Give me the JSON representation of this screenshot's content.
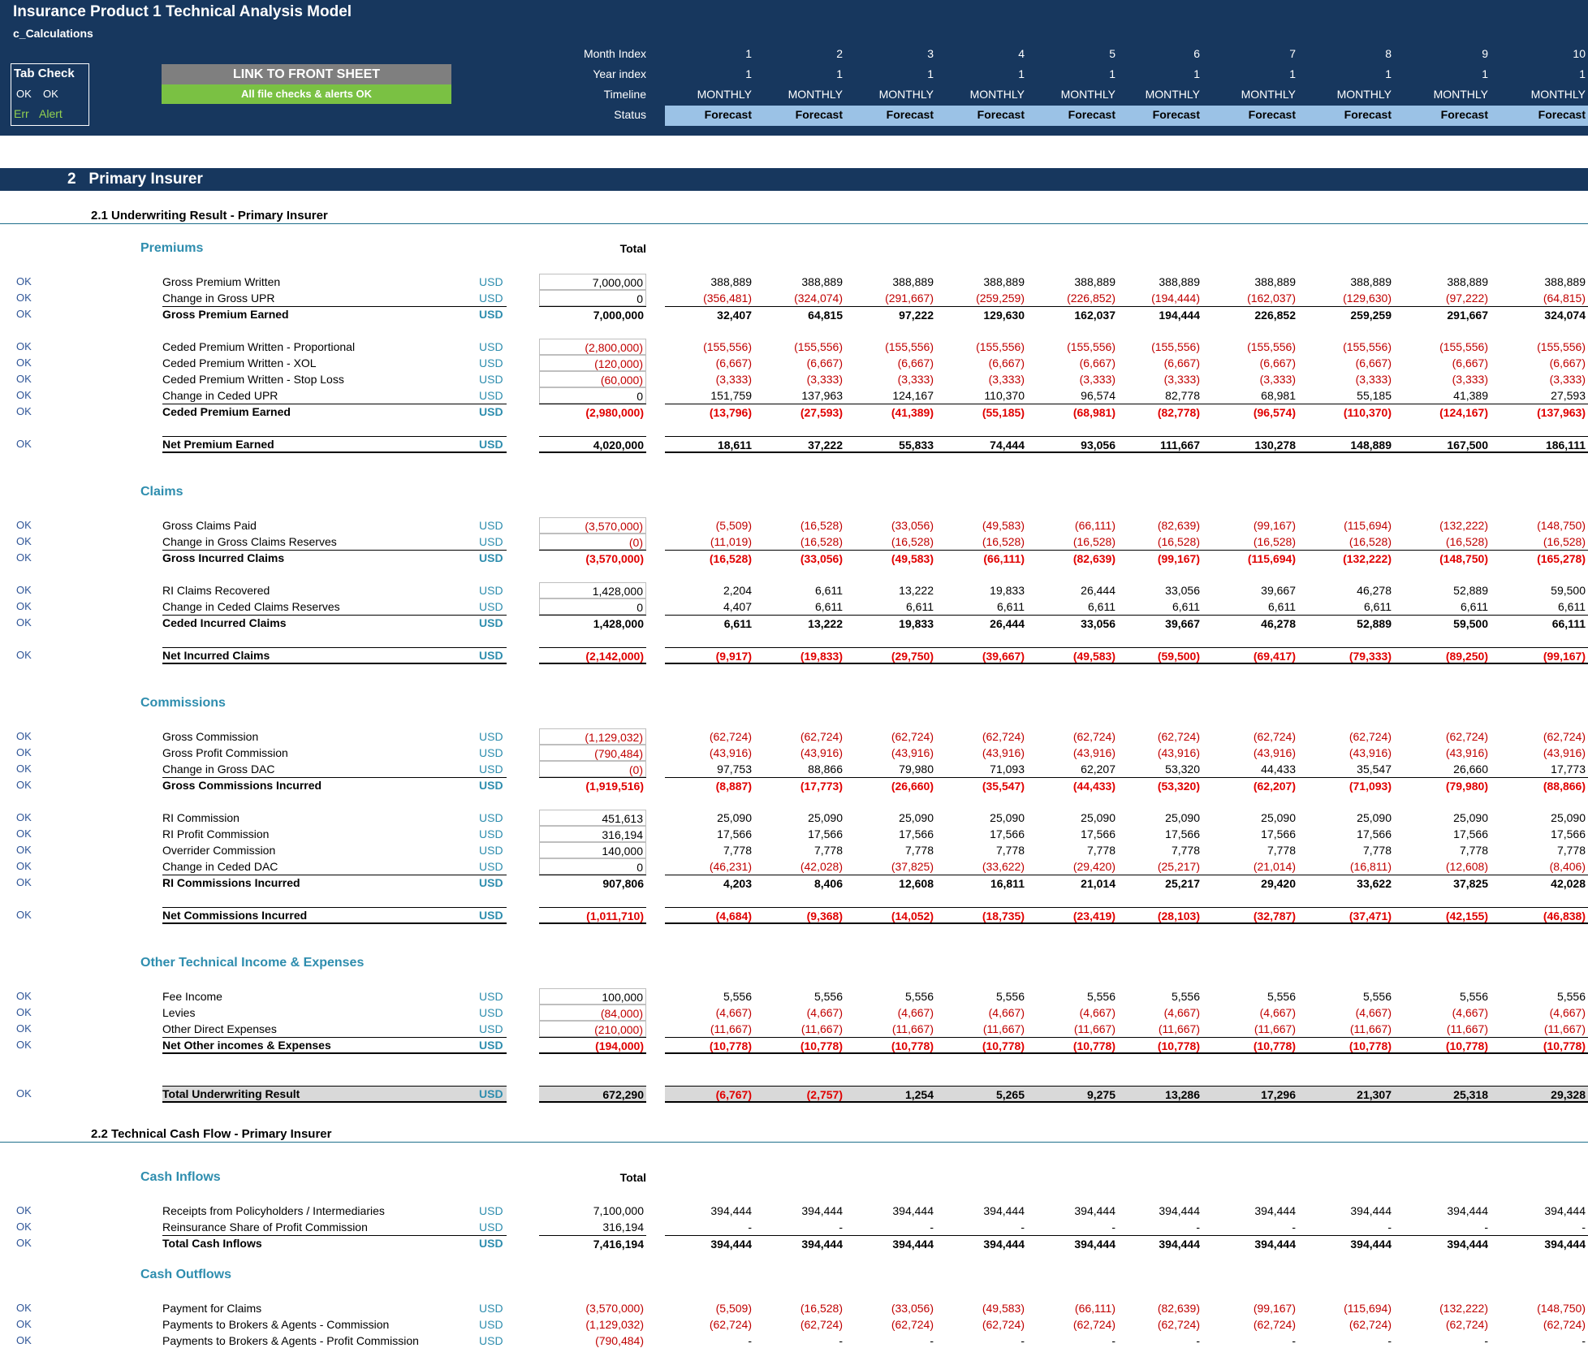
{
  "header": {
    "title": "Insurance Product 1 Technical Analysis Model",
    "sheet": "c_Calculations",
    "tab_check": {
      "title": "Tab Check",
      "ok1": "OK",
      "ok2": "OK",
      "err": "Err",
      "alert": "Alert"
    },
    "link_button": "LINK TO FRONT SHEET",
    "checks_status": "All file checks & alerts OK",
    "labels": {
      "month_index": "Month Index",
      "year_index": "Year index",
      "timeline": "Timeline",
      "status": "Status"
    },
    "month_index": [
      "1",
      "2",
      "3",
      "4",
      "5",
      "6",
      "7",
      "8",
      "9",
      "10"
    ],
    "year_index": [
      "1",
      "1",
      "1",
      "1",
      "1",
      "1",
      "1",
      "1",
      "1",
      "1"
    ],
    "timeline": [
      "MONTHLY",
      "MONTHLY",
      "MONTHLY",
      "MONTHLY",
      "MONTHLY",
      "MONTHLY",
      "MONTHLY",
      "MONTHLY",
      "MONTHLY",
      "MONTHLY"
    ],
    "status": [
      "Forecast",
      "Forecast",
      "Forecast",
      "Forecast",
      "Forecast",
      "Forecast",
      "Forecast",
      "Forecast",
      "Forecast",
      "Forecast"
    ]
  },
  "section": {
    "number": "2",
    "title": "Primary Insurer"
  },
  "sub1": {
    "title": "2.1  Underwriting Result - Primary Insurer",
    "total_label": "Total"
  },
  "sub2": {
    "title": "2.2  Technical Cash Flow - Primary Insurer",
    "total_label": "Total"
  },
  "groups": {
    "premiums": "Premiums",
    "claims": "Claims",
    "commissions": "Commissions",
    "other": "Other Technical Income & Expenses",
    "cash_in": "Cash Inflows",
    "cash_out": "Cash Outflows"
  },
  "rows": [
    {
      "check": "OK",
      "label": "Gross Premium Written",
      "unit": "USD",
      "total": "7,000,000",
      "vals": [
        "388,889",
        "388,889",
        "388,889",
        "388,889",
        "388,889",
        "388,889",
        "388,889",
        "388,889",
        "388,889",
        "388,889"
      ],
      "type": "input"
    },
    {
      "check": "OK",
      "label": "Change in Gross UPR",
      "unit": "USD",
      "total": "0",
      "vals": [
        "(356,481)",
        "(324,074)",
        "(291,667)",
        "(259,259)",
        "(226,852)",
        "(194,444)",
        "(162,037)",
        "(129,630)",
        "(97,222)",
        "(64,815)"
      ],
      "type": "input"
    },
    {
      "check": "OK",
      "label": "Gross Premium Earned",
      "unit": "USD",
      "total": "7,000,000",
      "vals": [
        "32,407",
        "64,815",
        "97,222",
        "129,630",
        "162,037",
        "194,444",
        "226,852",
        "259,259",
        "291,667",
        "324,074"
      ],
      "type": "sub"
    },
    {
      "check": "OK",
      "label": "Ceded Premium Written - Proportional",
      "unit": "USD",
      "total": "(2,800,000)",
      "vals": [
        "(155,556)",
        "(155,556)",
        "(155,556)",
        "(155,556)",
        "(155,556)",
        "(155,556)",
        "(155,556)",
        "(155,556)",
        "(155,556)",
        "(155,556)"
      ],
      "type": "input"
    },
    {
      "check": "OK",
      "label": "Ceded Premium Written - XOL",
      "unit": "USD",
      "total": "(120,000)",
      "vals": [
        "(6,667)",
        "(6,667)",
        "(6,667)",
        "(6,667)",
        "(6,667)",
        "(6,667)",
        "(6,667)",
        "(6,667)",
        "(6,667)",
        "(6,667)"
      ],
      "type": "input"
    },
    {
      "check": "OK",
      "label": "Ceded Premium Written - Stop Loss",
      "unit": "USD",
      "total": "(60,000)",
      "vals": [
        "(3,333)",
        "(3,333)",
        "(3,333)",
        "(3,333)",
        "(3,333)",
        "(3,333)",
        "(3,333)",
        "(3,333)",
        "(3,333)",
        "(3,333)"
      ],
      "type": "input"
    },
    {
      "check": "OK",
      "label": "Change in Ceded UPR",
      "unit": "USD",
      "total": "0",
      "vals": [
        "151,759",
        "137,963",
        "124,167",
        "110,370",
        "96,574",
        "82,778",
        "68,981",
        "55,185",
        "41,389",
        "27,593"
      ],
      "type": "input"
    },
    {
      "check": "OK",
      "label": "Ceded Premium Earned",
      "unit": "USD",
      "total": "(2,980,000)",
      "vals": [
        "(13,796)",
        "(27,593)",
        "(41,389)",
        "(55,185)",
        "(68,981)",
        "(82,778)",
        "(96,574)",
        "(110,370)",
        "(124,167)",
        "(137,963)"
      ],
      "type": "sub"
    },
    {
      "check": "OK",
      "label": "Net Premium Earned",
      "unit": "USD",
      "total": "4,020,000",
      "vals": [
        "18,611",
        "37,222",
        "55,833",
        "74,444",
        "93,056",
        "111,667",
        "130,278",
        "148,889",
        "167,500",
        "186,111"
      ],
      "type": "net"
    },
    {
      "check": "OK",
      "label": "Gross Claims Paid",
      "unit": "USD",
      "total": "(3,570,000)",
      "vals": [
        "(5,509)",
        "(16,528)",
        "(33,056)",
        "(49,583)",
        "(66,111)",
        "(82,639)",
        "(99,167)",
        "(115,694)",
        "(132,222)",
        "(148,750)"
      ],
      "type": "input"
    },
    {
      "check": "OK",
      "label": "Change in Gross Claims Reserves",
      "unit": "USD",
      "total": "(0)",
      "vals": [
        "(11,019)",
        "(16,528)",
        "(16,528)",
        "(16,528)",
        "(16,528)",
        "(16,528)",
        "(16,528)",
        "(16,528)",
        "(16,528)",
        "(16,528)"
      ],
      "type": "input"
    },
    {
      "check": "OK",
      "label": "Gross Incurred Claims",
      "unit": "USD",
      "total": "(3,570,000)",
      "vals": [
        "(16,528)",
        "(33,056)",
        "(49,583)",
        "(66,111)",
        "(82,639)",
        "(99,167)",
        "(115,694)",
        "(132,222)",
        "(148,750)",
        "(165,278)"
      ],
      "type": "sub"
    },
    {
      "check": "OK",
      "label": "RI Claims Recovered",
      "unit": "USD",
      "total": "1,428,000",
      "vals": [
        "2,204",
        "6,611",
        "13,222",
        "19,833",
        "26,444",
        "33,056",
        "39,667",
        "46,278",
        "52,889",
        "59,500"
      ],
      "type": "input"
    },
    {
      "check": "OK",
      "label": "Change in Ceded Claims Reserves",
      "unit": "USD",
      "total": "0",
      "vals": [
        "4,407",
        "6,611",
        "6,611",
        "6,611",
        "6,611",
        "6,611",
        "6,611",
        "6,611",
        "6,611",
        "6,611"
      ],
      "type": "input"
    },
    {
      "check": "OK",
      "label": "Ceded Incurred Claims",
      "unit": "USD",
      "total": "1,428,000",
      "vals": [
        "6,611",
        "13,222",
        "19,833",
        "26,444",
        "33,056",
        "39,667",
        "46,278",
        "52,889",
        "59,500",
        "66,111"
      ],
      "type": "sub"
    },
    {
      "check": "OK",
      "label": "Net Incurred Claims",
      "unit": "USD",
      "total": "(2,142,000)",
      "vals": [
        "(9,917)",
        "(19,833)",
        "(29,750)",
        "(39,667)",
        "(49,583)",
        "(59,500)",
        "(69,417)",
        "(79,333)",
        "(89,250)",
        "(99,167)"
      ],
      "type": "net"
    },
    {
      "check": "OK",
      "label": "Gross Commission",
      "unit": "USD",
      "total": "(1,129,032)",
      "vals": [
        "(62,724)",
        "(62,724)",
        "(62,724)",
        "(62,724)",
        "(62,724)",
        "(62,724)",
        "(62,724)",
        "(62,724)",
        "(62,724)",
        "(62,724)"
      ],
      "type": "input"
    },
    {
      "check": "OK",
      "label": "Gross Profit Commission",
      "unit": "USD",
      "total": "(790,484)",
      "vals": [
        "(43,916)",
        "(43,916)",
        "(43,916)",
        "(43,916)",
        "(43,916)",
        "(43,916)",
        "(43,916)",
        "(43,916)",
        "(43,916)",
        "(43,916)"
      ],
      "type": "input"
    },
    {
      "check": "OK",
      "label": "Change in Gross DAC",
      "unit": "USD",
      "total": "(0)",
      "vals": [
        "97,753",
        "88,866",
        "79,980",
        "71,093",
        "62,207",
        "53,320",
        "44,433",
        "35,547",
        "26,660",
        "17,773"
      ],
      "type": "input"
    },
    {
      "check": "OK",
      "label": "Gross Commissions Incurred",
      "unit": "USD",
      "total": "(1,919,516)",
      "vals": [
        "(8,887)",
        "(17,773)",
        "(26,660)",
        "(35,547)",
        "(44,433)",
        "(53,320)",
        "(62,207)",
        "(71,093)",
        "(79,980)",
        "(88,866)"
      ],
      "type": "sub"
    },
    {
      "check": "OK",
      "label": "RI Commission",
      "unit": "USD",
      "total": "451,613",
      "vals": [
        "25,090",
        "25,090",
        "25,090",
        "25,090",
        "25,090",
        "25,090",
        "25,090",
        "25,090",
        "25,090",
        "25,090"
      ],
      "type": "input"
    },
    {
      "check": "OK",
      "label": "RI Profit Commission",
      "unit": "USD",
      "total": "316,194",
      "vals": [
        "17,566",
        "17,566",
        "17,566",
        "17,566",
        "17,566",
        "17,566",
        "17,566",
        "17,566",
        "17,566",
        "17,566"
      ],
      "type": "input"
    },
    {
      "check": "OK",
      "label": "Overrider Commission",
      "unit": "USD",
      "total": "140,000",
      "vals": [
        "7,778",
        "7,778",
        "7,778",
        "7,778",
        "7,778",
        "7,778",
        "7,778",
        "7,778",
        "7,778",
        "7,778"
      ],
      "type": "input"
    },
    {
      "check": "OK",
      "label": "Change in Ceded DAC",
      "unit": "USD",
      "total": "0",
      "vals": [
        "(46,231)",
        "(42,028)",
        "(37,825)",
        "(33,622)",
        "(29,420)",
        "(25,217)",
        "(21,014)",
        "(16,811)",
        "(12,608)",
        "(8,406)"
      ],
      "type": "input"
    },
    {
      "check": "OK",
      "label": "RI Commissions Incurred",
      "unit": "USD",
      "total": "907,806",
      "vals": [
        "4,203",
        "8,406",
        "12,608",
        "16,811",
        "21,014",
        "25,217",
        "29,420",
        "33,622",
        "37,825",
        "42,028"
      ],
      "type": "sub"
    },
    {
      "check": "OK",
      "label": "Net Commissions Incurred",
      "unit": "USD",
      "total": "(1,011,710)",
      "vals": [
        "(4,684)",
        "(9,368)",
        "(14,052)",
        "(18,735)",
        "(23,419)",
        "(28,103)",
        "(32,787)",
        "(37,471)",
        "(42,155)",
        "(46,838)"
      ],
      "type": "net"
    },
    {
      "check": "OK",
      "label": "Fee Income",
      "unit": "USD",
      "total": "100,000",
      "vals": [
        "5,556",
        "5,556",
        "5,556",
        "5,556",
        "5,556",
        "5,556",
        "5,556",
        "5,556",
        "5,556",
        "5,556"
      ],
      "type": "input"
    },
    {
      "check": "OK",
      "label": "Levies",
      "unit": "USD",
      "total": "(84,000)",
      "vals": [
        "(4,667)",
        "(4,667)",
        "(4,667)",
        "(4,667)",
        "(4,667)",
        "(4,667)",
        "(4,667)",
        "(4,667)",
        "(4,667)",
        "(4,667)"
      ],
      "type": "input"
    },
    {
      "check": "OK",
      "label": "Other Direct Expenses",
      "unit": "USD",
      "total": "(210,000)",
      "vals": [
        "(11,667)",
        "(11,667)",
        "(11,667)",
        "(11,667)",
        "(11,667)",
        "(11,667)",
        "(11,667)",
        "(11,667)",
        "(11,667)",
        "(11,667)"
      ],
      "type": "input"
    },
    {
      "check": "OK",
      "label": "Net Other incomes & Expenses",
      "unit": "USD",
      "total": "(194,000)",
      "vals": [
        "(10,778)",
        "(10,778)",
        "(10,778)",
        "(10,778)",
        "(10,778)",
        "(10,778)",
        "(10,778)",
        "(10,778)",
        "(10,778)",
        "(10,778)"
      ],
      "type": "net"
    },
    {
      "check": "OK",
      "label": "Total Underwriting Result",
      "unit": "USD",
      "total": "672,290",
      "vals": [
        "(6,767)",
        "(2,757)",
        "1,254",
        "5,265",
        "9,275",
        "13,286",
        "17,296",
        "21,307",
        "25,318",
        "29,328"
      ],
      "type": "grand"
    },
    {
      "check": "OK",
      "label": "Receipts from Policyholders / Intermediaries",
      "unit": "USD",
      "total": "7,100,000",
      "vals": [
        "394,444",
        "394,444",
        "394,444",
        "394,444",
        "394,444",
        "394,444",
        "394,444",
        "394,444",
        "394,444",
        "394,444"
      ],
      "type": "plain"
    },
    {
      "check": "OK",
      "label": "Reinsurance Share of Profit Commission",
      "unit": "USD",
      "total": "316,194",
      "vals": [
        "-",
        "-",
        "-",
        "-",
        "-",
        "-",
        "-",
        "-",
        "-",
        "-"
      ],
      "type": "plain"
    },
    {
      "check": "OK",
      "label": "Total Cash Inflows",
      "unit": "USD",
      "total": "7,416,194",
      "vals": [
        "394,444",
        "394,444",
        "394,444",
        "394,444",
        "394,444",
        "394,444",
        "394,444",
        "394,444",
        "394,444",
        "394,444"
      ],
      "type": "sub"
    },
    {
      "check": "OK",
      "label": "Payment for Claims",
      "unit": "USD",
      "total": "(3,570,000)",
      "vals": [
        "(5,509)",
        "(16,528)",
        "(33,056)",
        "(49,583)",
        "(66,111)",
        "(82,639)",
        "(99,167)",
        "(115,694)",
        "(132,222)",
        "(148,750)"
      ],
      "type": "plain"
    },
    {
      "check": "OK",
      "label": "Payments to Brokers & Agents - Commission",
      "unit": "USD",
      "total": "(1,129,032)",
      "vals": [
        "(62,724)",
        "(62,724)",
        "(62,724)",
        "(62,724)",
        "(62,724)",
        "(62,724)",
        "(62,724)",
        "(62,724)",
        "(62,724)",
        "(62,724)"
      ],
      "type": "plain"
    },
    {
      "check": "OK",
      "label": "Payments to Brokers & Agents - Profit Commission",
      "unit": "USD",
      "total": "(790,484)",
      "vals": [
        "-",
        "-",
        "-",
        "-",
        "-",
        "-",
        "-",
        "-",
        "-",
        "-"
      ],
      "type": "plain"
    }
  ]
}
